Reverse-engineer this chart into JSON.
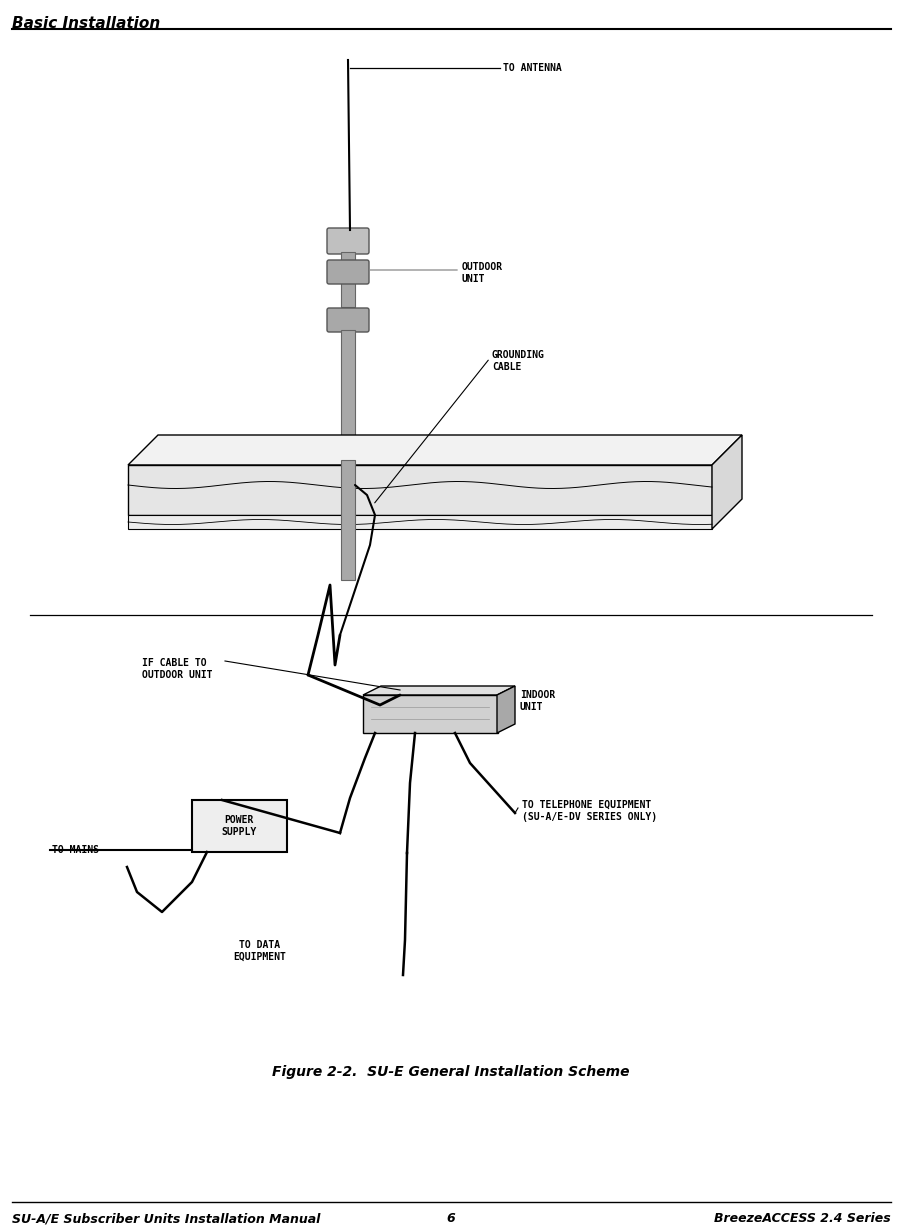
{
  "bg_color": "#ffffff",
  "header_text": "Basic Installation",
  "footer_left": "SU-A/E Subscriber Units Installation Manual",
  "footer_center": "6",
  "footer_right": "BreezeACCESS 2.4 Series",
  "caption": "Figure 2-2.  SU-E General Installation Scheme",
  "label_to_antenna": "TO ANTENNA",
  "label_outdoor_unit": "OUTDOOR\nUNIT",
  "label_grounding_cable": "GROUNDING\nCABLE",
  "label_if_cable": "IF CABLE TO\nOUTDOOR UNIT",
  "label_indoor_unit": "INDOOR\nUNIT",
  "label_to_mains": "TO MAINS",
  "label_power_supply": "POWER\nSUPPLY",
  "label_to_telephone": "TO TELEPHONE EQUIPMENT\n(SU-A/E-DV SERIES ONLY)",
  "label_to_data": "TO DATA\nEQUIPMENT",
  "gray1": "#c0c0c0",
  "gray2": "#a8a8a8",
  "gray3": "#909090",
  "gray4": "#e0e0e0",
  "gray5": "#d0d0d0",
  "black": "#000000",
  "white": "#ffffff",
  "label_fontsize": 7,
  "header_fontsize": 11,
  "caption_fontsize": 10,
  "footer_fontsize": 9
}
